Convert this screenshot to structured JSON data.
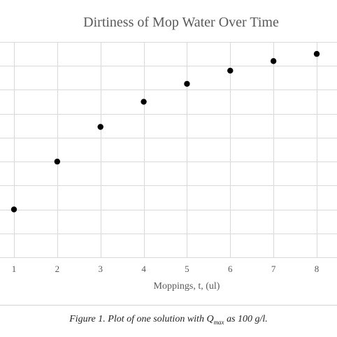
{
  "chart_data": {
    "type": "scatter",
    "title": "Dirtiness of Mop Water Over Time",
    "xlabel": "Moppings, t, (ul)",
    "ylabel": "",
    "x": [
      1,
      2,
      3,
      4,
      5,
      6,
      7,
      8
    ],
    "y": [
      1.0,
      3.0,
      4.45,
      5.5,
      6.25,
      6.8,
      7.2,
      7.5
    ],
    "xticks": [
      "1",
      "2",
      "3",
      "4",
      "5",
      "6",
      "7",
      "8"
    ],
    "xlim": [
      1,
      8
    ],
    "ylim": [
      -1,
      8
    ],
    "grid": true,
    "marker_color": "#000000",
    "grid_color": "#d9d9d9"
  },
  "caption": {
    "prefix": "Figure 1. Plot of one solution with Q",
    "subscript": "max",
    "suffix": " as 100 g/l."
  }
}
